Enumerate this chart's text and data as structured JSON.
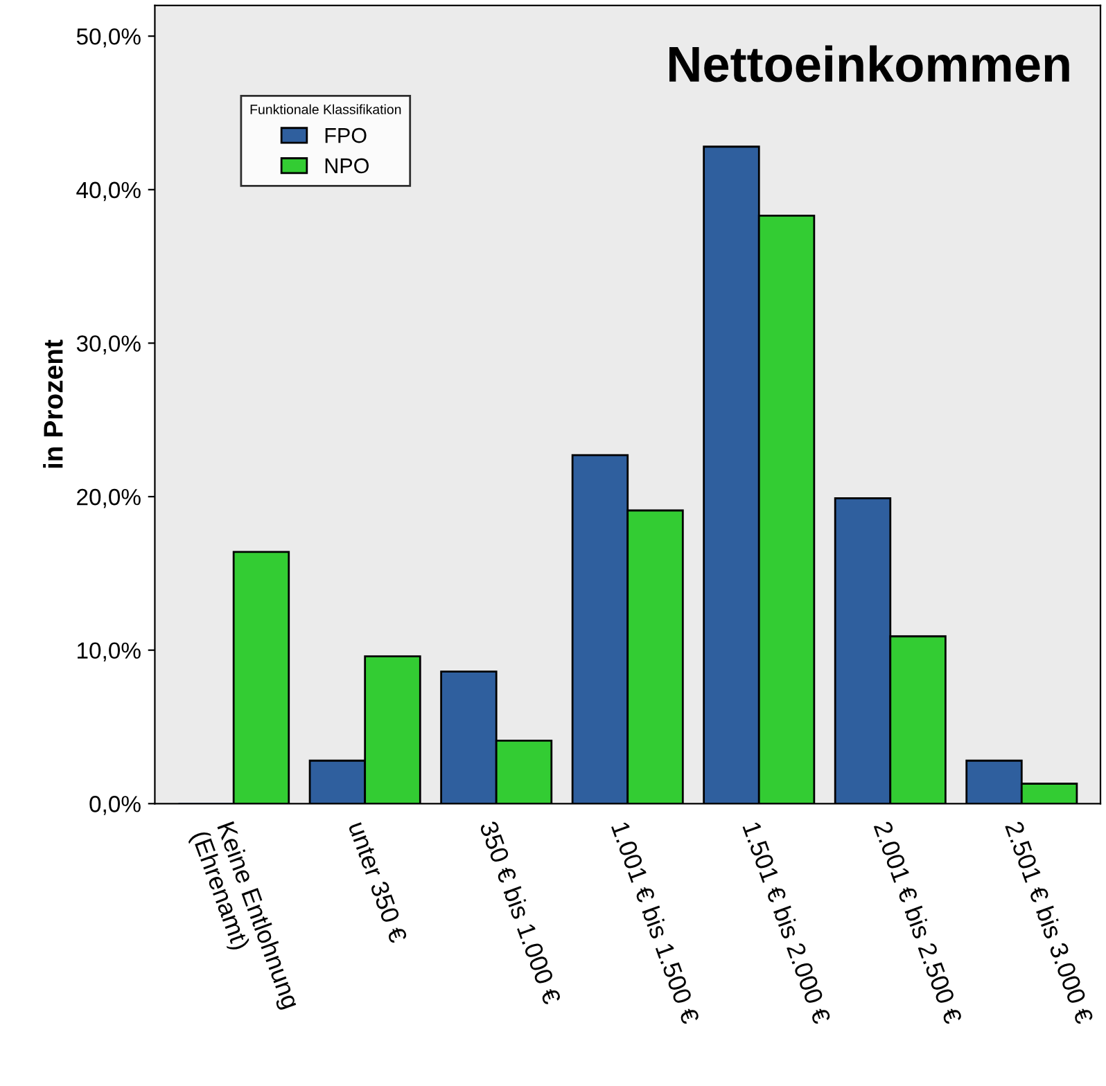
{
  "chart_data": {
    "type": "bar",
    "title": "Nettoeinkommen",
    "ylabel": "in Prozent",
    "legend_title": "Funktionale Klassifikation",
    "legend": "top left",
    "categories": [
      "Keine Entlohnung\n(Ehrenamt)",
      "unter 350 €",
      "350 € bis 1.000 €",
      "1.001 € bis 1.500 €",
      "1.501 € bis 2.000 €",
      "2.001 € bis 2.500 €",
      "2.501 € bis 3.000 €"
    ],
    "series": [
      {
        "name": "FPO",
        "color": "#2f5f9e",
        "values": [
          0,
          2.8,
          8.6,
          22.7,
          42.8,
          19.9,
          2.8
        ]
      },
      {
        "name": "NPO",
        "color": "#33cc33",
        "values": [
          16.4,
          9.6,
          4.1,
          19.1,
          38.3,
          10.9,
          1.3
        ]
      }
    ],
    "ylim": [
      0,
      52
    ],
    "yticks": [
      {
        "value": 0,
        "label": "0,0%"
      },
      {
        "value": 10,
        "label": "10,0%"
      },
      {
        "value": 20,
        "label": "20,0%"
      },
      {
        "value": 30,
        "label": "30,0%"
      },
      {
        "value": 40,
        "label": "40,0%"
      },
      {
        "value": 50,
        "label": "50,0%"
      }
    ],
    "grid": false
  }
}
